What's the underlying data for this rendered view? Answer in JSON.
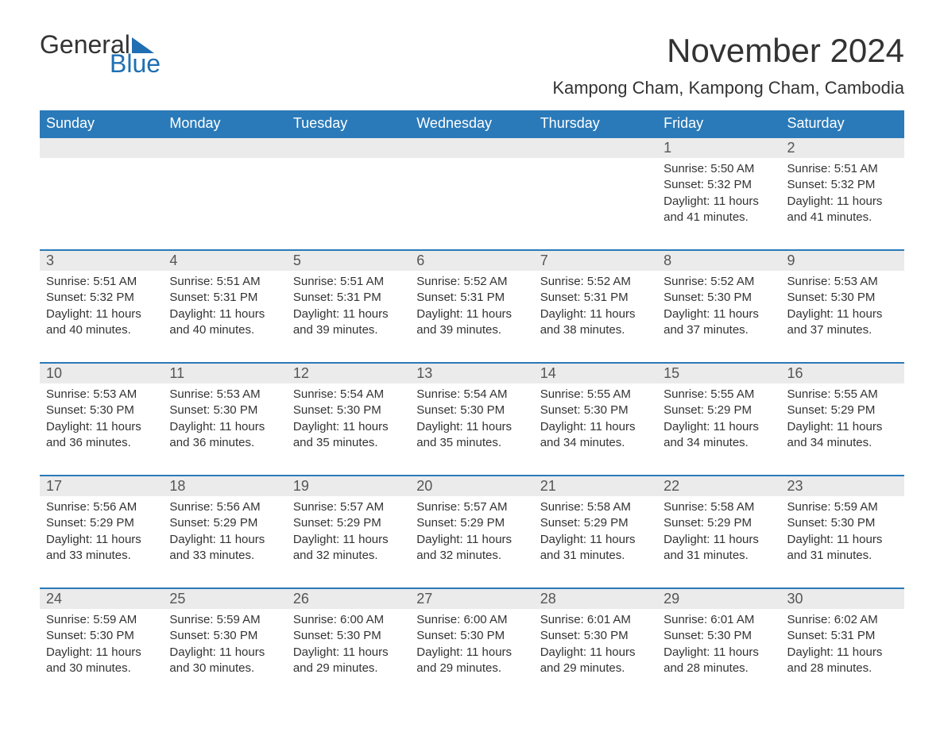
{
  "logo": {
    "part1": "General",
    "part2": "Blue",
    "triangle_color": "#1f6fb2"
  },
  "title": "November 2024",
  "location": "Kampong Cham, Kampong Cham, Cambodia",
  "colors": {
    "header_bg": "#2a7ab9",
    "row_divider": "#2a7ab9",
    "daynum_bg": "#ebebeb"
  },
  "dayHeaders": [
    "Sunday",
    "Monday",
    "Tuesday",
    "Wednesday",
    "Thursday",
    "Friday",
    "Saturday"
  ],
  "weeks": [
    [
      null,
      null,
      null,
      null,
      null,
      {
        "n": "1",
        "sr": "5:50 AM",
        "ss": "5:32 PM",
        "dl": "11 hours and 41 minutes."
      },
      {
        "n": "2",
        "sr": "5:51 AM",
        "ss": "5:32 PM",
        "dl": "11 hours and 41 minutes."
      }
    ],
    [
      {
        "n": "3",
        "sr": "5:51 AM",
        "ss": "5:32 PM",
        "dl": "11 hours and 40 minutes."
      },
      {
        "n": "4",
        "sr": "5:51 AM",
        "ss": "5:31 PM",
        "dl": "11 hours and 40 minutes."
      },
      {
        "n": "5",
        "sr": "5:51 AM",
        "ss": "5:31 PM",
        "dl": "11 hours and 39 minutes."
      },
      {
        "n": "6",
        "sr": "5:52 AM",
        "ss": "5:31 PM",
        "dl": "11 hours and 39 minutes."
      },
      {
        "n": "7",
        "sr": "5:52 AM",
        "ss": "5:31 PM",
        "dl": "11 hours and 38 minutes."
      },
      {
        "n": "8",
        "sr": "5:52 AM",
        "ss": "5:30 PM",
        "dl": "11 hours and 37 minutes."
      },
      {
        "n": "9",
        "sr": "5:53 AM",
        "ss": "5:30 PM",
        "dl": "11 hours and 37 minutes."
      }
    ],
    [
      {
        "n": "10",
        "sr": "5:53 AM",
        "ss": "5:30 PM",
        "dl": "11 hours and 36 minutes."
      },
      {
        "n": "11",
        "sr": "5:53 AM",
        "ss": "5:30 PM",
        "dl": "11 hours and 36 minutes."
      },
      {
        "n": "12",
        "sr": "5:54 AM",
        "ss": "5:30 PM",
        "dl": "11 hours and 35 minutes."
      },
      {
        "n": "13",
        "sr": "5:54 AM",
        "ss": "5:30 PM",
        "dl": "11 hours and 35 minutes."
      },
      {
        "n": "14",
        "sr": "5:55 AM",
        "ss": "5:30 PM",
        "dl": "11 hours and 34 minutes."
      },
      {
        "n": "15",
        "sr": "5:55 AM",
        "ss": "5:29 PM",
        "dl": "11 hours and 34 minutes."
      },
      {
        "n": "16",
        "sr": "5:55 AM",
        "ss": "5:29 PM",
        "dl": "11 hours and 34 minutes."
      }
    ],
    [
      {
        "n": "17",
        "sr": "5:56 AM",
        "ss": "5:29 PM",
        "dl": "11 hours and 33 minutes."
      },
      {
        "n": "18",
        "sr": "5:56 AM",
        "ss": "5:29 PM",
        "dl": "11 hours and 33 minutes."
      },
      {
        "n": "19",
        "sr": "5:57 AM",
        "ss": "5:29 PM",
        "dl": "11 hours and 32 minutes."
      },
      {
        "n": "20",
        "sr": "5:57 AM",
        "ss": "5:29 PM",
        "dl": "11 hours and 32 minutes."
      },
      {
        "n": "21",
        "sr": "5:58 AM",
        "ss": "5:29 PM",
        "dl": "11 hours and 31 minutes."
      },
      {
        "n": "22",
        "sr": "5:58 AM",
        "ss": "5:29 PM",
        "dl": "11 hours and 31 minutes."
      },
      {
        "n": "23",
        "sr": "5:59 AM",
        "ss": "5:30 PM",
        "dl": "11 hours and 31 minutes."
      }
    ],
    [
      {
        "n": "24",
        "sr": "5:59 AM",
        "ss": "5:30 PM",
        "dl": "11 hours and 30 minutes."
      },
      {
        "n": "25",
        "sr": "5:59 AM",
        "ss": "5:30 PM",
        "dl": "11 hours and 30 minutes."
      },
      {
        "n": "26",
        "sr": "6:00 AM",
        "ss": "5:30 PM",
        "dl": "11 hours and 29 minutes."
      },
      {
        "n": "27",
        "sr": "6:00 AM",
        "ss": "5:30 PM",
        "dl": "11 hours and 29 minutes."
      },
      {
        "n": "28",
        "sr": "6:01 AM",
        "ss": "5:30 PM",
        "dl": "11 hours and 29 minutes."
      },
      {
        "n": "29",
        "sr": "6:01 AM",
        "ss": "5:30 PM",
        "dl": "11 hours and 28 minutes."
      },
      {
        "n": "30",
        "sr": "6:02 AM",
        "ss": "5:31 PM",
        "dl": "11 hours and 28 minutes."
      }
    ]
  ],
  "labels": {
    "sunrise": "Sunrise: ",
    "sunset": "Sunset: ",
    "daylight": "Daylight: "
  }
}
